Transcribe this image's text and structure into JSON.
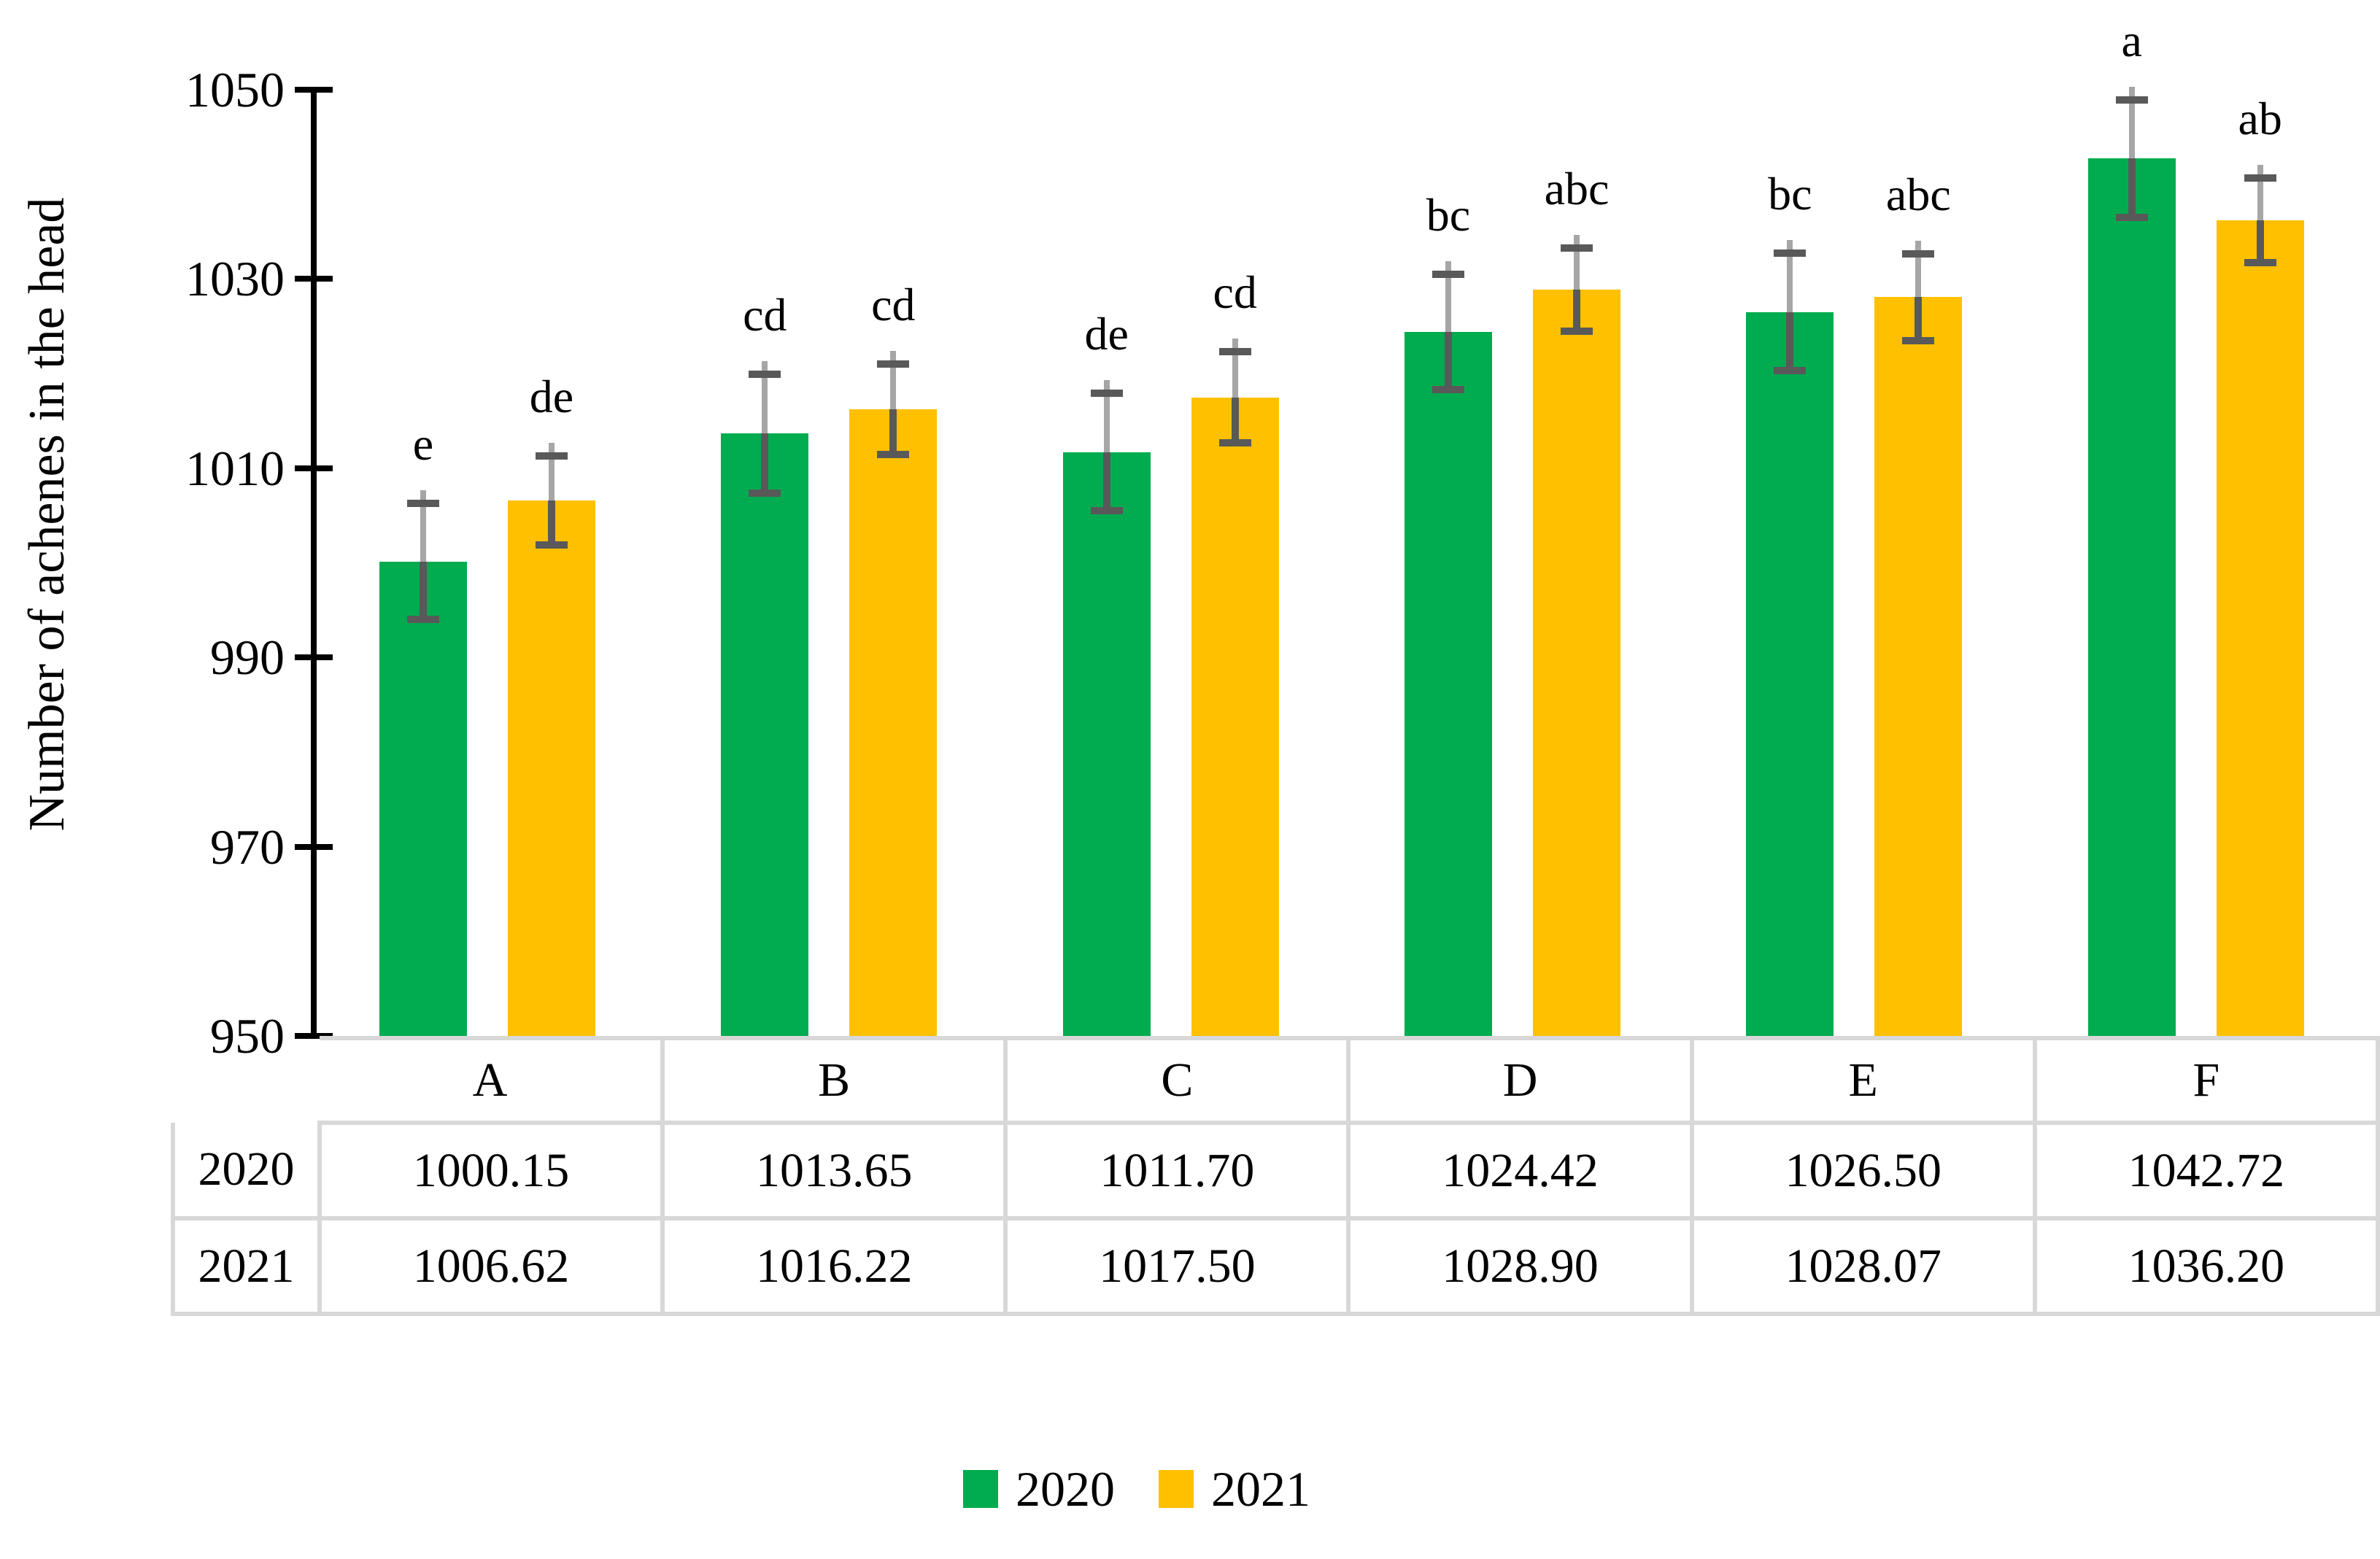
{
  "figure": {
    "y_axis_title": "Number of achenes in the head",
    "legend": [
      {
        "label": "2020",
        "color": "#00AC4F"
      },
      {
        "label": "2021",
        "color": "#FFC000"
      }
    ]
  },
  "chart_data": {
    "type": "bar",
    "title": "",
    "xlabel": "",
    "ylabel": "Number of achenes in the head",
    "categories": [
      "A",
      "B",
      "C",
      "D",
      "E",
      "F"
    ],
    "series": [
      {
        "name": "2020",
        "color": "#00AC4F",
        "values": [
          1000.15,
          1013.65,
          1011.7,
          1024.42,
          1026.5,
          1042.72
        ],
        "errors": [
          6.15,
          6.25,
          6.2,
          6.1,
          6.2,
          6.2
        ],
        "letters": [
          "e",
          "cd",
          "de",
          "bc",
          "bc",
          "a"
        ]
      },
      {
        "name": "2021",
        "color": "#FFC000",
        "values": [
          1006.62,
          1016.22,
          1017.5,
          1028.9,
          1028.07,
          1036.2
        ],
        "errors": [
          4.7,
          4.8,
          4.8,
          4.4,
          4.6,
          4.5
        ],
        "letters": [
          "de",
          "cd",
          "cd",
          "abc",
          "abc",
          "ab"
        ]
      }
    ],
    "ylim": [
      950,
      1050
    ],
    "yticks": [
      "950",
      "970",
      "990",
      "1010",
      "1030",
      "1050"
    ],
    "ytick_step": 20,
    "grid": false,
    "legend_position": "bottom",
    "error_bar_colors": {
      "upper_line": "#A6A6A6",
      "lower_line": "#595959",
      "cap": "#595959"
    },
    "axis_color": "#000000"
  },
  "table": {
    "row_labels": [
      "2020",
      "2021"
    ],
    "columns": [
      "A",
      "B",
      "C",
      "D",
      "E",
      "F"
    ],
    "rows": [
      [
        "1000.15",
        "1013.65",
        "1011.70",
        "1024.42",
        "1026.50",
        "1042.72"
      ],
      [
        "1006.62",
        "1016.22",
        "1017.50",
        "1028.90",
        "1028.07",
        "1036.20"
      ]
    ]
  }
}
